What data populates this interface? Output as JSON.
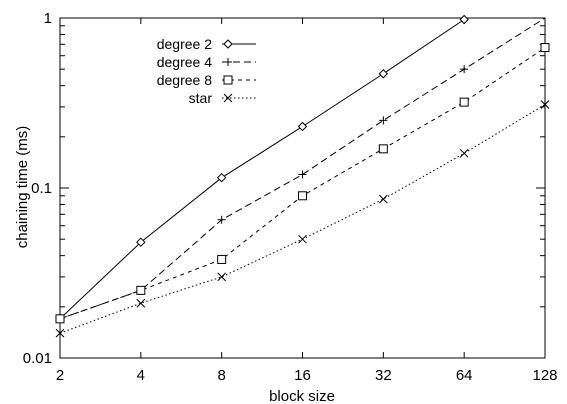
{
  "chart_data": {
    "type": "line",
    "xlabel": "block size",
    "ylabel": "chaining time (ms)",
    "x_scale": "log2",
    "y_scale": "log10",
    "x": [
      2,
      4,
      8,
      16,
      32,
      64,
      128
    ],
    "x_tick_labels": [
      "2",
      "4",
      "8",
      "16",
      "32",
      "64",
      "128"
    ],
    "xlim": [
      2,
      128
    ],
    "ylim": [
      0.01,
      1
    ],
    "y_ticks": [
      0.01,
      0.1,
      1
    ],
    "y_tick_labels": [
      "0.01",
      "0.1",
      "1"
    ],
    "grid": false,
    "legend_position": "top-left",
    "series": [
      {
        "name": "degree 2",
        "marker": "diamond",
        "dash": "solid",
        "x": [
          2,
          4,
          8,
          16,
          32,
          64
        ],
        "values": [
          0.017,
          0.048,
          0.115,
          0.23,
          0.47,
          0.98
        ]
      },
      {
        "name": "degree 4",
        "marker": "plus",
        "dash": "dashed",
        "x": [
          2,
          4,
          8,
          16,
          32,
          64
        ],
        "values": [
          0.017,
          0.025,
          0.065,
          0.12,
          0.25,
          0.5
        ]
      },
      {
        "name": "degree 8",
        "marker": "square",
        "dash": "short-dashed",
        "x": [
          2,
          4,
          8,
          16,
          32,
          64,
          128
        ],
        "values": [
          0.017,
          0.025,
          0.038,
          0.09,
          0.17,
          0.32,
          0.67
        ]
      },
      {
        "name": "star",
        "marker": "cross",
        "dash": "dotted",
        "x": [
          2,
          4,
          8,
          16,
          32,
          64,
          128
        ],
        "values": [
          0.014,
          0.021,
          0.03,
          0.05,
          0.086,
          0.16,
          0.31
        ]
      }
    ]
  }
}
